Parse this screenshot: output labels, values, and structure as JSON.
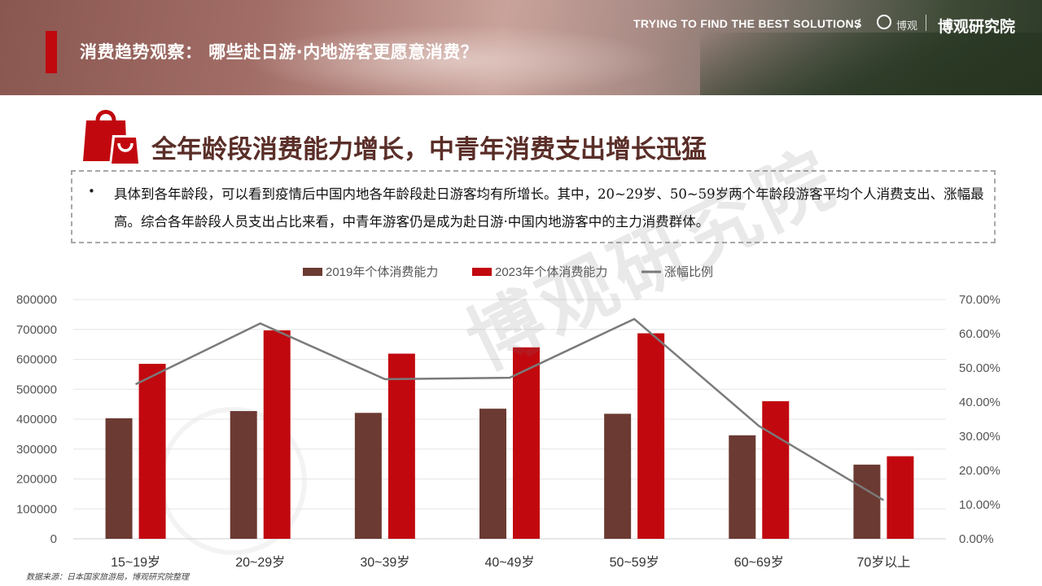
{
  "header": {
    "page_title": "消费趋势观察： 哪些赴日游·内地游客更愿意消费？",
    "slogan": "TRYING TO FIND THE BEST SOLUTIONS",
    "separator": "/",
    "logo_small_text": "博观",
    "brand": "博观研究院"
  },
  "section": {
    "heading": "全年龄段消费能力增长，中青年消费支出增长迅猛",
    "bullet": "•",
    "description": "具体到各年龄段，可以看到疫情后中国内地各年龄段赴日游客均有所增长。其中，20~29岁、50~59岁两个年龄段游客平均个人消费支出、涨幅最高。综合各年龄段人员支出占比来看，中青年游客仍是成为赴日游·中国内地游客中的主力消费群体。"
  },
  "watermark": "博观研究院",
  "source": "数据来源：日本国家旅游局，博观研究院整理",
  "colors": {
    "series_2019": "#6b3a32",
    "series_2023": "#c1080f",
    "growth_line": "#7a7a7a",
    "title_bar": "#c1080f"
  },
  "chart_data": {
    "type": "bar",
    "categories": [
      "15~19岁",
      "20~29岁",
      "30~39岁",
      "40~49岁",
      "50~59岁",
      "60~69岁",
      "70岁以上"
    ],
    "series": [
      {
        "name": "2019年个体消费能力",
        "type": "bar",
        "axis": "left",
        "values": [
          403000,
          427000,
          421000,
          435000,
          418000,
          346000,
          248000
        ]
      },
      {
        "name": "2023年个体消费能力",
        "type": "bar",
        "axis": "left",
        "values": [
          585000,
          697000,
          619000,
          640000,
          687000,
          460000,
          276000
        ]
      },
      {
        "name": "涨幅比例",
        "type": "line",
        "axis": "right",
        "values": [
          0.452,
          0.63,
          0.467,
          0.471,
          0.643,
          0.33,
          0.113
        ]
      }
    ],
    "y_left": {
      "min": 0,
      "max": 800000,
      "ticks": [
        "0",
        "100000",
        "200000",
        "300000",
        "400000",
        "500000",
        "600000",
        "700000",
        "800000"
      ]
    },
    "y_right": {
      "min": 0,
      "max": 0.7,
      "ticks": [
        "0.00%",
        "10.00%",
        "20.00%",
        "30.00%",
        "40.00%",
        "50.00%",
        "60.00%",
        "70.00%"
      ]
    },
    "grid": true,
    "legend_position": "top"
  }
}
